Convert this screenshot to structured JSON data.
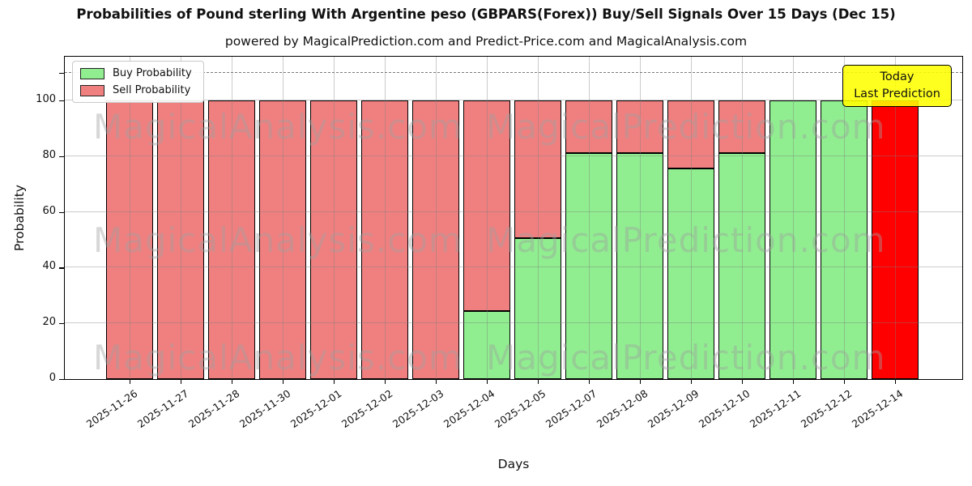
{
  "title": "Probabilities of Pound sterling With Argentine peso (GBPARS(Forex)) Buy/Sell Signals Over 15 Days (Dec 15)",
  "subtitle": "powered by MagicalPrediction.com and Predict-Price.com and MagicalAnalysis.com",
  "annotation": {
    "line1": "Today",
    "line2": "Last Prediction",
    "bg_color": "#ffff00"
  },
  "watermarks": {
    "left_text": "MagicalAnalysis.com",
    "right_text": "MagicalPrediction.com",
    "rows": 3
  },
  "chart_data": {
    "type": "bar",
    "stacked": true,
    "title": "Probabilities of Pound sterling With Argentine peso (GBPARS(Forex)) Buy/Sell Signals Over 15 Days (Dec 15)",
    "xlabel": "Days",
    "ylabel": "Probability",
    "ylim": [
      0,
      115.7
    ],
    "yticks": [
      0,
      20,
      40,
      60,
      80,
      100
    ],
    "grid": true,
    "dashed_line_y": 110,
    "legend_position": "upper-left",
    "categories": [
      "2025-11-26",
      "2025-11-27",
      "2025-11-28",
      "2025-11-30",
      "2025-12-01",
      "2025-12-02",
      "2025-12-03",
      "2025-12-04",
      "2025-12-05",
      "2025-12-07",
      "2025-12-08",
      "2025-12-09",
      "2025-12-10",
      "2025-12-11",
      "2025-12-12",
      "2025-12-14"
    ],
    "series": [
      {
        "name": "Buy Probability",
        "color": "#90ee90",
        "values": [
          0,
          0,
          0,
          0,
          0,
          0,
          0,
          24.4,
          50.6,
          81,
          81,
          75.6,
          81,
          100,
          100,
          0
        ]
      },
      {
        "name": "Sell Probability",
        "color": "#f08080",
        "values": [
          100,
          100,
          100,
          100,
          100,
          100,
          100,
          75.6,
          49.4,
          19,
          19,
          24.4,
          19,
          0,
          0,
          100
        ]
      }
    ],
    "today_index": 15,
    "today_sell_color": "#ff0000",
    "bar_edge_color": "#000000"
  }
}
